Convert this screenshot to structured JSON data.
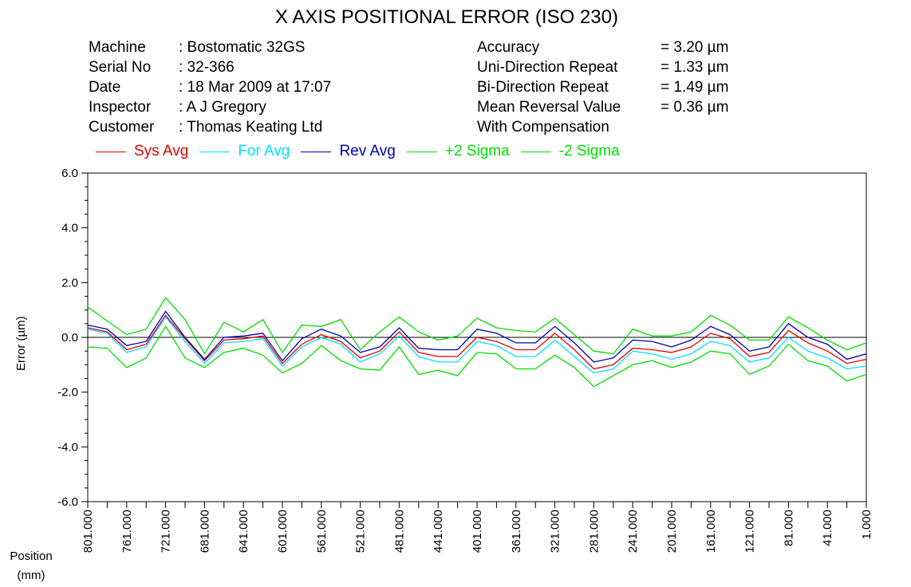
{
  "header": {
    "title": "X AXIS POSITIONAL ERROR (ISO 230)",
    "left": [
      {
        "label": "Machine",
        "value": ": Bostomatic 32GS"
      },
      {
        "label": "Serial No",
        "value": ": 32-366"
      },
      {
        "label": "Date",
        "value": ": 18 Mar 2009 at 17:07"
      },
      {
        "label": "Inspector",
        "value": ": A J Gregory"
      },
      {
        "label": "Customer",
        "value": ": Thomas Keating Ltd"
      }
    ],
    "right": [
      {
        "label": "Accuracy",
        "value": "= 3.20 µm"
      },
      {
        "label": "Uni-Direction Repeat",
        "value": "= 1.33 µm"
      },
      {
        "label": "Bi-Direction Repeat",
        "value": "= 1.49 µm"
      },
      {
        "label": "Mean Reversal Value",
        "value": "= 0.36 µm"
      },
      {
        "label": "With Compensation",
        "value": ""
      }
    ]
  },
  "legend": [
    {
      "name": "Sys Avg",
      "color": "#e00000"
    },
    {
      "name": "For Avg",
      "color": "#00e0ff"
    },
    {
      "name": "Rev Avg",
      "color": "#0000b0"
    },
    {
      "name": "+2 Sigma",
      "color": "#00dd00"
    },
    {
      "name": "-2 Sigma",
      "color": "#00dd00"
    }
  ],
  "chart_data": {
    "type": "line",
    "title": "X AXIS POSITIONAL ERROR (ISO 230)",
    "xlabel": "Position (mm)",
    "xlabel_lines": [
      "Position",
      "(mm)"
    ],
    "ylabel": "Error (µm)",
    "ylim": [
      -6.0,
      6.0
    ],
    "yticks": [
      "6.0",
      "4.0",
      "2.0",
      "0.0",
      "-2.0",
      "-4.0",
      "-6.0"
    ],
    "ytick_values": [
      6,
      4,
      2,
      0,
      -2,
      -4,
      -6
    ],
    "x": [
      801,
      781,
      761,
      741,
      721,
      701,
      681,
      661,
      641,
      621,
      601,
      581,
      561,
      541,
      521,
      501,
      481,
      461,
      441,
      421,
      401,
      381,
      361,
      341,
      321,
      301,
      281,
      261,
      241,
      221,
      201,
      181,
      161,
      141,
      121,
      101,
      81,
      61,
      41,
      21,
      1
    ],
    "xtick_labels": [
      "801.000",
      "761.000",
      "721.000",
      "681.000",
      "641.000",
      "601.000",
      "561.000",
      "521.000",
      "481.000",
      "441.000",
      "401.000",
      "361.000",
      "321.000",
      "281.000",
      "241.000",
      "201.000",
      "161.000",
      "121.000",
      "81.000",
      "41.000",
      "1.000"
    ],
    "xtick_values": [
      801,
      761,
      721,
      681,
      641,
      601,
      561,
      521,
      481,
      441,
      401,
      361,
      321,
      281,
      241,
      201,
      161,
      121,
      81,
      41,
      1
    ],
    "zero_line": true,
    "grid": false,
    "legend_position": "top",
    "series": [
      {
        "name": "Sys Avg",
        "color": "#e00000",
        "values": [
          0.35,
          0.2,
          -0.45,
          -0.25,
          0.8,
          -0.05,
          -0.85,
          -0.1,
          -0.05,
          0.05,
          -0.95,
          -0.25,
          0.1,
          -0.15,
          -0.75,
          -0.5,
          0.2,
          -0.55,
          -0.7,
          -0.7,
          0.0,
          -0.15,
          -0.45,
          -0.45,
          0.15,
          -0.45,
          -1.15,
          -1.0,
          -0.4,
          -0.45,
          -0.55,
          -0.35,
          0.15,
          -0.05,
          -0.7,
          -0.55,
          0.25,
          -0.2,
          -0.5,
          -0.95,
          -0.8
        ]
      },
      {
        "name": "For Avg",
        "color": "#00e0ff",
        "values": [
          0.3,
          0.15,
          -0.55,
          -0.35,
          0.75,
          -0.15,
          -0.95,
          -0.2,
          -0.15,
          -0.05,
          -1.05,
          -0.35,
          0.0,
          -0.25,
          -0.9,
          -0.6,
          0.05,
          -0.7,
          -0.9,
          -0.9,
          -0.15,
          -0.3,
          -0.7,
          -0.7,
          -0.1,
          -0.7,
          -1.3,
          -1.15,
          -0.5,
          -0.6,
          -0.8,
          -0.6,
          -0.15,
          -0.3,
          -0.9,
          -0.75,
          0.0,
          -0.5,
          -0.75,
          -1.15,
          -1.05
        ]
      },
      {
        "name": "Rev Avg",
        "color": "#0000b0",
        "values": [
          0.45,
          0.3,
          -0.3,
          -0.15,
          0.95,
          0.0,
          -0.8,
          0.0,
          0.05,
          0.15,
          -0.85,
          -0.05,
          0.3,
          0.05,
          -0.55,
          -0.35,
          0.35,
          -0.4,
          -0.45,
          -0.45,
          0.3,
          0.15,
          -0.2,
          -0.2,
          0.4,
          -0.2,
          -0.9,
          -0.75,
          -0.1,
          -0.15,
          -0.35,
          -0.1,
          0.4,
          0.1,
          -0.5,
          -0.35,
          0.5,
          0.0,
          -0.25,
          -0.8,
          -0.6
        ]
      },
      {
        "name": "+2 Sigma",
        "color": "#00dd00",
        "values": [
          1.1,
          0.6,
          0.1,
          0.3,
          1.45,
          0.65,
          -0.6,
          0.55,
          0.2,
          0.65,
          -0.55,
          0.45,
          0.4,
          0.65,
          -0.45,
          0.2,
          0.75,
          0.2,
          -0.1,
          0.05,
          0.7,
          0.35,
          0.25,
          0.2,
          0.7,
          0.1,
          -0.5,
          -0.6,
          0.3,
          0.05,
          0.05,
          0.2,
          0.8,
          0.45,
          -0.1,
          -0.1,
          0.75,
          0.35,
          -0.1,
          -0.45,
          -0.2
        ]
      },
      {
        "name": "-2 Sigma",
        "color": "#00dd00",
        "values": [
          -0.35,
          -0.4,
          -1.1,
          -0.75,
          0.4,
          -0.75,
          -1.1,
          -0.55,
          -0.4,
          -0.65,
          -1.3,
          -0.95,
          -0.3,
          -0.85,
          -1.15,
          -1.2,
          -0.35,
          -1.35,
          -1.2,
          -1.4,
          -0.55,
          -0.6,
          -1.15,
          -1.15,
          -0.65,
          -1.1,
          -1.8,
          -1.4,
          -1.0,
          -0.85,
          -1.1,
          -0.9,
          -0.5,
          -0.6,
          -1.35,
          -1.05,
          -0.25,
          -0.85,
          -1.05,
          -1.6,
          -1.35
        ]
      }
    ]
  }
}
